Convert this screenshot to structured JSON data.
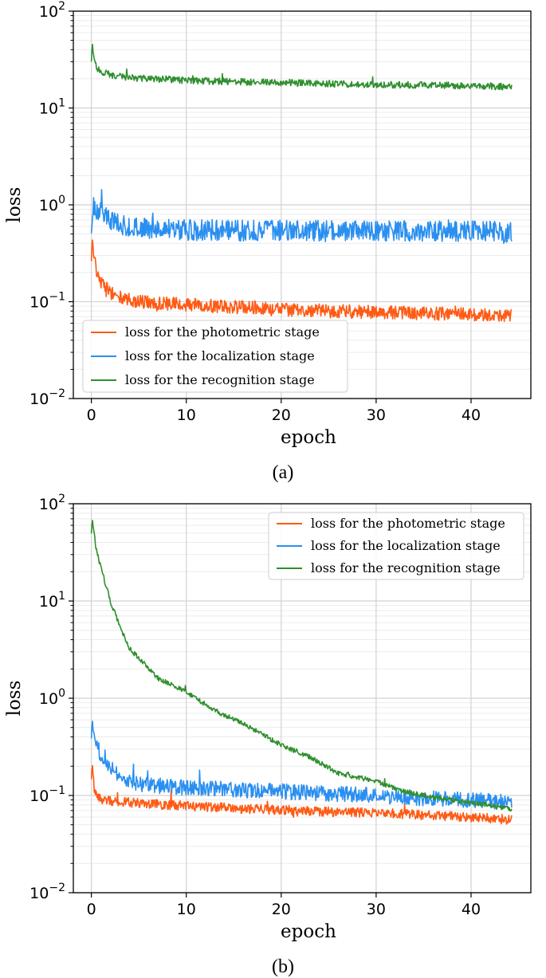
{
  "colors": {
    "photometric": "#ff5a14",
    "localization": "#2a8ff0",
    "recognition": "#2f8f2f",
    "grid_major": "#d2d2d2",
    "grid_minor": "#ececec"
  },
  "chart_data": [
    {
      "type": "line",
      "caption": "(a)",
      "xlabel": "epoch",
      "ylabel": "loss",
      "xlim": [
        -1.9,
        46.3
      ],
      "ylim": [
        0.01,
        100
      ],
      "yscale": "log",
      "grid": true,
      "legend_position": "lower-left",
      "xticks": [
        0,
        10,
        20,
        30,
        40
      ],
      "xtick_labels": [
        "0",
        "10",
        "20",
        "30",
        "40"
      ],
      "yticks": [
        0.01,
        0.1,
        1,
        10,
        100
      ],
      "ytick_labels": [
        {
          "base": "10",
          "exp": "−2"
        },
        {
          "base": "10",
          "exp": "−1"
        },
        {
          "base": "10",
          "exp": "0"
        },
        {
          "base": "10",
          "exp": "1"
        },
        {
          "base": "10",
          "exp": "2"
        }
      ],
      "series": [
        {
          "name": "loss for the photometric stage",
          "color_key": "photometric",
          "x": [
            0,
            0.1,
            0.3,
            0.6,
            1,
            1.5,
            2,
            3,
            4,
            5,
            7,
            10,
            15,
            20,
            25,
            30,
            35,
            40,
            44.3
          ],
          "y": [
            0.26,
            0.45,
            0.3,
            0.2,
            0.16,
            0.14,
            0.125,
            0.11,
            0.104,
            0.1,
            0.097,
            0.093,
            0.088,
            0.083,
            0.08,
            0.078,
            0.076,
            0.074,
            0.073
          ],
          "noise": 0.07
        },
        {
          "name": "loss for the localization stage",
          "color_key": "localization",
          "x": [
            0,
            0.2,
            0.5,
            1,
            2,
            3,
            5,
            10,
            20,
            30,
            40,
            44.3
          ],
          "y": [
            0.5,
            1.0,
            0.9,
            0.82,
            0.7,
            0.62,
            0.57,
            0.55,
            0.54,
            0.53,
            0.54,
            0.52
          ],
          "noise": 0.11
        },
        {
          "name": "loss for the recognition stage",
          "color_key": "recognition",
          "x": [
            0,
            0.1,
            0.3,
            0.6,
            1,
            2,
            4,
            7,
            10,
            15,
            20,
            25,
            30,
            35,
            40,
            44.3
          ],
          "y": [
            30,
            47,
            30,
            26,
            24,
            22,
            20.5,
            20,
            19.3,
            18.7,
            18.3,
            17.8,
            17.5,
            17.2,
            17,
            16.5
          ],
          "noise": 0.035
        }
      ]
    },
    {
      "type": "line",
      "caption": "(b)",
      "xlabel": "epoch",
      "ylabel": "loss",
      "xlim": [
        -1.9,
        46.3
      ],
      "ylim": [
        0.01,
        100
      ],
      "yscale": "log",
      "grid": true,
      "legend_position": "top-right",
      "xticks": [
        0,
        10,
        20,
        30,
        40
      ],
      "xtick_labels": [
        "0",
        "10",
        "20",
        "30",
        "40"
      ],
      "yticks": [
        0.01,
        0.1,
        1,
        10,
        100
      ],
      "ytick_labels": [
        {
          "base": "10",
          "exp": "−2"
        },
        {
          "base": "10",
          "exp": "−1"
        },
        {
          "base": "10",
          "exp": "0"
        },
        {
          "base": "10",
          "exp": "1"
        },
        {
          "base": "10",
          "exp": "2"
        }
      ],
      "series": [
        {
          "name": "loss for the photometric stage",
          "color_key": "photometric",
          "x": [
            0,
            0.1,
            0.3,
            0.6,
            1,
            2,
            5,
            10,
            15,
            20,
            25,
            30,
            35,
            40,
            44,
            44.3
          ],
          "y": [
            0.15,
            0.21,
            0.12,
            0.1,
            0.092,
            0.088,
            0.083,
            0.078,
            0.074,
            0.071,
            0.068,
            0.066,
            0.063,
            0.06,
            0.056,
            0.065
          ],
          "noise": 0.05
        },
        {
          "name": "loss for the localization stage",
          "color_key": "localization",
          "x": [
            0,
            0.1,
            0.3,
            0.6,
            1,
            2,
            3,
            4,
            5,
            10,
            15,
            20,
            25,
            30,
            35,
            40,
            44.3
          ],
          "y": [
            0.4,
            0.6,
            0.38,
            0.32,
            0.26,
            0.2,
            0.16,
            0.14,
            0.13,
            0.12,
            0.115,
            0.11,
            0.105,
            0.1,
            0.094,
            0.09,
            0.085
          ],
          "noise": 0.08
        },
        {
          "name": "loss for the recognition stage",
          "color_key": "recognition",
          "x": [
            0,
            0.1,
            0.5,
            1,
            2,
            3,
            4,
            5,
            7,
            10,
            13,
            16,
            20,
            23,
            26,
            30,
            33,
            36,
            40,
            44.3
          ],
          "y": [
            50,
            70,
            35,
            22,
            10,
            5.5,
            3.2,
            2.6,
            1.6,
            1.15,
            0.75,
            0.55,
            0.33,
            0.25,
            0.17,
            0.14,
            0.11,
            0.095,
            0.085,
            0.072
          ],
          "noise": 0.025
        }
      ]
    }
  ]
}
